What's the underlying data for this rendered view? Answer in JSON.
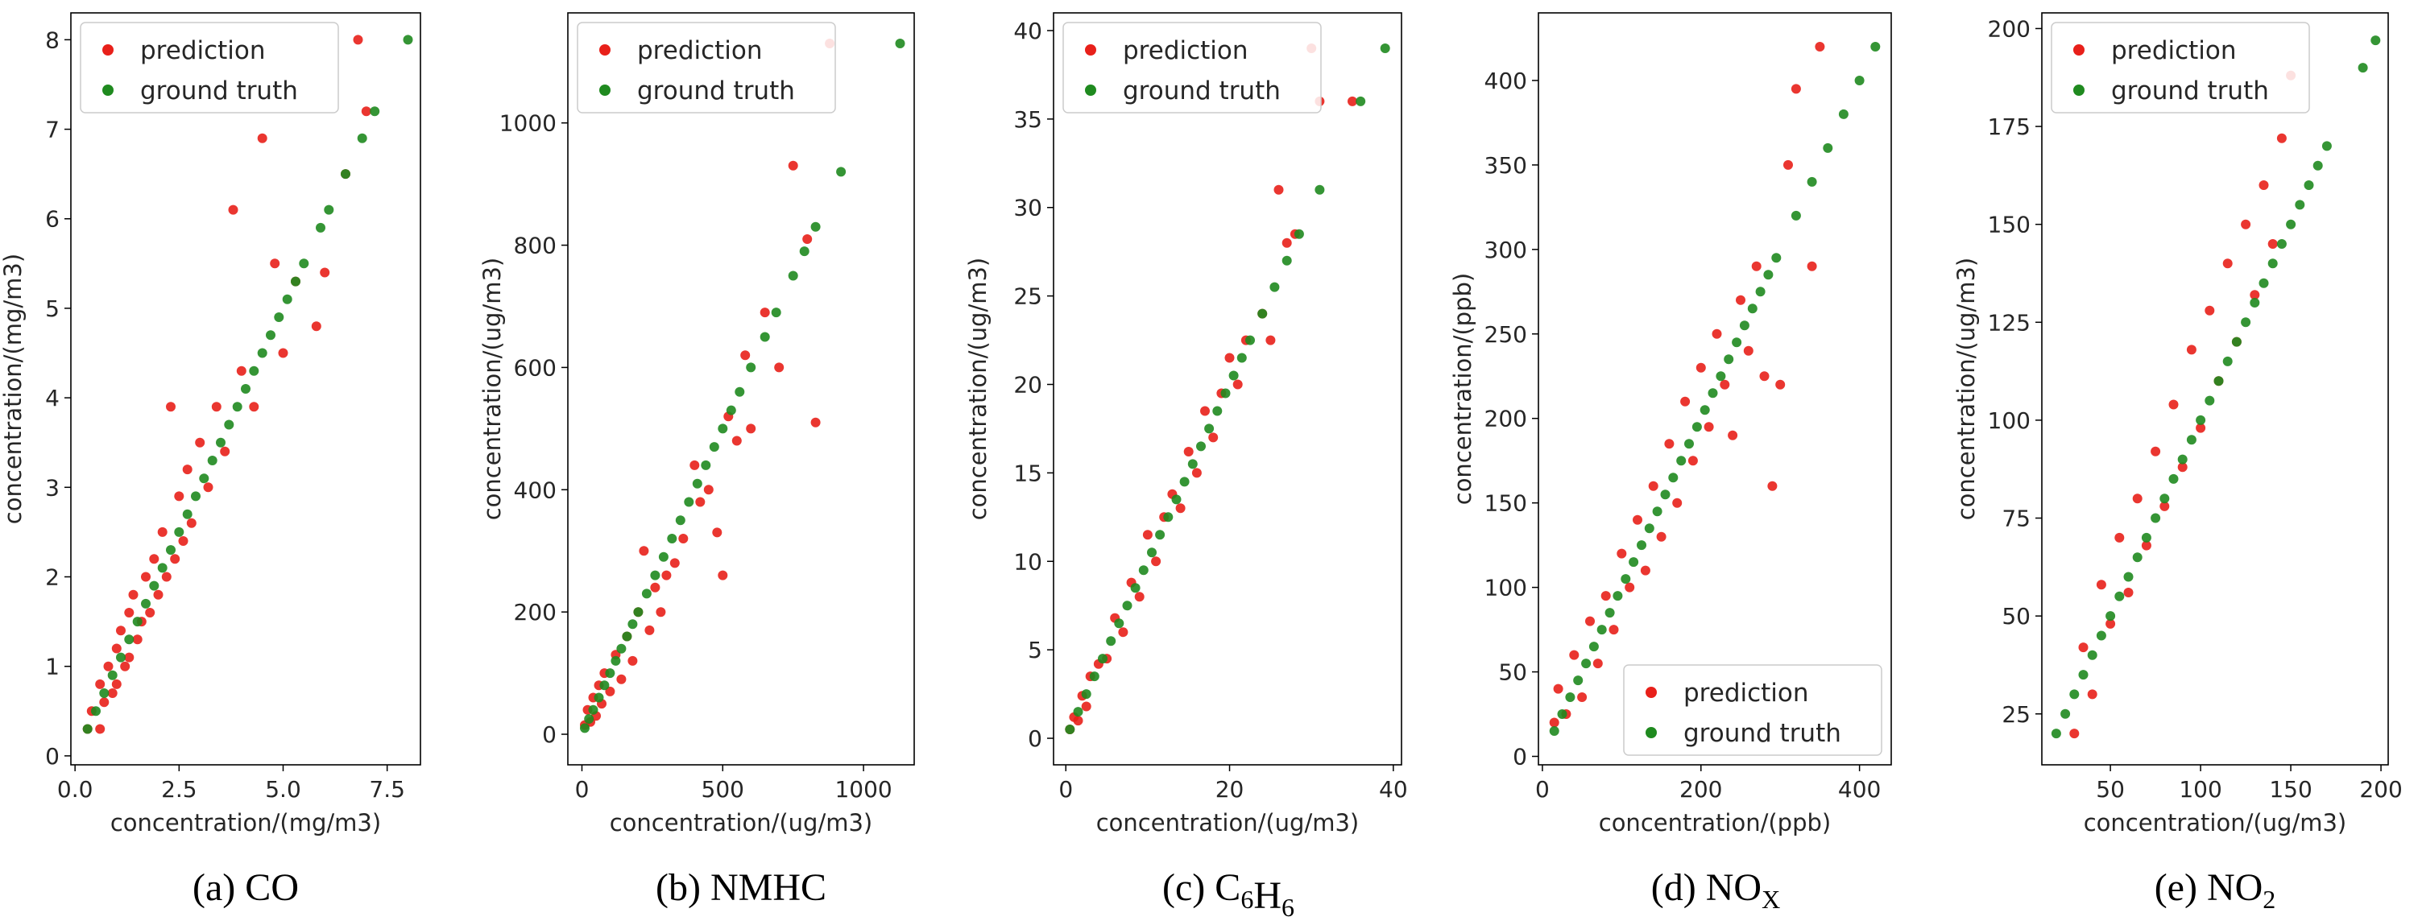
{
  "colors": {
    "prediction": "#e8201a",
    "ground_truth": "#1f8a1f"
  },
  "chart_data": [
    {
      "type": "scatter",
      "caption": "(a) CO",
      "xlabel": "concentration/(mg/m3)",
      "ylabel": "concentration/(mg/m3)",
      "xlim": [
        -0.1,
        8.3
      ],
      "ylim": [
        -0.1,
        8.3
      ],
      "xticks": [
        "0.0",
        "2.5",
        "5.0",
        "7.5"
      ],
      "xtick_values": [
        0,
        2.5,
        5,
        7.5
      ],
      "yticks": [
        "0",
        "1",
        "2",
        "3",
        "4",
        "5",
        "6",
        "7",
        "8"
      ],
      "ytick_values": [
        0,
        1,
        2,
        3,
        4,
        5,
        6,
        7,
        8
      ],
      "legend": {
        "placement": "upper-left",
        "entries": [
          "prediction",
          "ground truth"
        ]
      },
      "series": [
        {
          "name": "prediction",
          "color": "prediction",
          "x": [
            0.3,
            0.4,
            0.6,
            0.6,
            0.7,
            0.8,
            0.9,
            1.0,
            1.0,
            1.1,
            1.2,
            1.3,
            1.3,
            1.4,
            1.5,
            1.6,
            1.7,
            1.8,
            1.9,
            2.0,
            2.1,
            2.2,
            2.3,
            2.4,
            2.5,
            2.6,
            2.7,
            2.8,
            3.0,
            3.2,
            3.4,
            3.6,
            3.8,
            4.0,
            4.3,
            4.5,
            4.8,
            5.0,
            5.3,
            5.8,
            6.0,
            6.5,
            6.8,
            7.0
          ],
          "y": [
            0.3,
            0.5,
            0.3,
            0.8,
            0.6,
            1.0,
            0.7,
            1.2,
            0.8,
            1.4,
            1.0,
            1.6,
            1.1,
            1.8,
            1.3,
            1.5,
            2.0,
            1.6,
            2.2,
            1.8,
            2.5,
            2.0,
            3.9,
            2.2,
            2.9,
            2.4,
            3.2,
            2.6,
            3.5,
            3.0,
            3.9,
            3.4,
            6.1,
            4.3,
            3.9,
            6.9,
            5.5,
            4.5,
            5.3,
            4.8,
            5.4,
            6.5,
            8.0,
            7.2
          ]
        },
        {
          "name": "ground truth",
          "color": "ground_truth",
          "x": [
            0.3,
            0.5,
            0.7,
            0.9,
            1.1,
            1.3,
            1.5,
            1.7,
            1.9,
            2.1,
            2.3,
            2.5,
            2.7,
            2.9,
            3.1,
            3.3,
            3.5,
            3.7,
            3.9,
            4.1,
            4.3,
            4.5,
            4.7,
            4.9,
            5.1,
            5.3,
            5.5,
            5.9,
            6.1,
            6.5,
            6.9,
            7.2,
            8.0
          ],
          "y": [
            0.3,
            0.5,
            0.7,
            0.9,
            1.1,
            1.3,
            1.5,
            1.7,
            1.9,
            2.1,
            2.3,
            2.5,
            2.7,
            2.9,
            3.1,
            3.3,
            3.5,
            3.7,
            3.9,
            4.1,
            4.3,
            4.5,
            4.7,
            4.9,
            5.1,
            5.3,
            5.5,
            5.9,
            6.1,
            6.5,
            6.9,
            7.2,
            8.0
          ]
        }
      ]
    },
    {
      "type": "scatter",
      "caption": "(b) NMHC",
      "xlabel": "concentration/(ug/m3)",
      "ylabel": "concentration/(ug/m3)",
      "xlim": [
        -50,
        1180
      ],
      "ylim": [
        -50,
        1180
      ],
      "xticks": [
        "0",
        "500",
        "1000"
      ],
      "xtick_values": [
        0,
        500,
        1000
      ],
      "yticks": [
        "0",
        "200",
        "400",
        "600",
        "800",
        "1000"
      ],
      "ytick_values": [
        0,
        200,
        400,
        600,
        800,
        1000
      ],
      "legend": {
        "placement": "upper-left",
        "entries": [
          "prediction",
          "ground truth"
        ]
      },
      "series": [
        {
          "name": "prediction",
          "color": "prediction",
          "x": [
            10,
            20,
            30,
            40,
            50,
            60,
            70,
            80,
            100,
            120,
            140,
            160,
            180,
            200,
            220,
            240,
            260,
            280,
            300,
            330,
            360,
            400,
            420,
            450,
            480,
            500,
            520,
            550,
            580,
            600,
            650,
            700,
            750,
            800,
            830,
            880
          ],
          "y": [
            15,
            40,
            20,
            60,
            30,
            80,
            50,
            100,
            70,
            130,
            90,
            160,
            120,
            200,
            300,
            170,
            240,
            200,
            260,
            280,
            320,
            440,
            380,
            400,
            330,
            260,
            520,
            480,
            620,
            500,
            690,
            600,
            930,
            810,
            510,
            1130
          ]
        },
        {
          "name": "ground truth",
          "color": "ground_truth",
          "x": [
            10,
            25,
            40,
            60,
            80,
            100,
            120,
            140,
            160,
            180,
            200,
            230,
            260,
            290,
            320,
            350,
            380,
            410,
            440,
            470,
            500,
            530,
            560,
            600,
            650,
            690,
            750,
            790,
            830,
            920,
            1130
          ],
          "y": [
            10,
            25,
            40,
            60,
            80,
            100,
            120,
            140,
            160,
            180,
            200,
            230,
            260,
            290,
            320,
            350,
            380,
            410,
            440,
            470,
            500,
            530,
            560,
            600,
            650,
            690,
            750,
            790,
            830,
            920,
            1130
          ]
        }
      ]
    },
    {
      "type": "scatter",
      "caption": "(c) C6H6",
      "xlabel": "concentration/(ug/m3)",
      "ylabel": "concentration/(ug/m3)",
      "xlim": [
        -1.5,
        41
      ],
      "ylim": [
        -1.5,
        41
      ],
      "xticks": [
        "0",
        "20",
        "40"
      ],
      "xtick_values": [
        0,
        20,
        40
      ],
      "yticks": [
        "0",
        "5",
        "10",
        "15",
        "20",
        "25",
        "30",
        "35",
        "40"
      ],
      "ytick_values": [
        0,
        5,
        10,
        15,
        20,
        25,
        30,
        35,
        40
      ],
      "legend": {
        "placement": "upper-left",
        "entries": [
          "prediction",
          "ground truth"
        ]
      },
      "series": [
        {
          "name": "prediction",
          "color": "prediction",
          "x": [
            0.5,
            1,
            1.5,
            2,
            2.5,
            3,
            4,
            5,
            6,
            7,
            8,
            9,
            10,
            11,
            12,
            13,
            14,
            15,
            16,
            17,
            18,
            19,
            20,
            21,
            22,
            24,
            25,
            26,
            27,
            28,
            30,
            31,
            35
          ],
          "y": [
            0.5,
            1.2,
            1.0,
            2.4,
            1.8,
            3.5,
            4.2,
            4.5,
            6.8,
            6.0,
            8.8,
            8.0,
            11.5,
            10.0,
            12.5,
            13.8,
            13.0,
            16.2,
            15.0,
            18.5,
            17.0,
            19.5,
            21.5,
            20.0,
            22.5,
            24.0,
            22.5,
            31.0,
            28.0,
            28.5,
            39.0,
            36.0,
            36.0
          ]
        },
        {
          "name": "ground truth",
          "color": "ground_truth",
          "x": [
            0.5,
            1.5,
            2.5,
            3.5,
            4.5,
            5.5,
            6.5,
            7.5,
            8.5,
            9.5,
            10.5,
            11.5,
            12.5,
            13.5,
            14.5,
            15.5,
            16.5,
            17.5,
            18.5,
            19.5,
            20.5,
            21.5,
            22.5,
            24,
            25.5,
            27,
            28.5,
            31,
            36,
            39
          ],
          "y": [
            0.5,
            1.5,
            2.5,
            3.5,
            4.5,
            5.5,
            6.5,
            7.5,
            8.5,
            9.5,
            10.5,
            11.5,
            12.5,
            13.5,
            14.5,
            15.5,
            16.5,
            17.5,
            18.5,
            19.5,
            20.5,
            21.5,
            22.5,
            24,
            25.5,
            27,
            28.5,
            31,
            36,
            39
          ]
        }
      ]
    },
    {
      "type": "scatter",
      "caption": "(d) NOX",
      "xlabel": "concentration/(ppb)",
      "ylabel": "concentration/(ppb)",
      "xlim": [
        -5,
        440
      ],
      "ylim": [
        -5,
        440
      ],
      "xticks": [
        "0",
        "200",
        "400"
      ],
      "xtick_values": [
        0,
        200,
        400
      ],
      "yticks": [
        "0",
        "50",
        "100",
        "150",
        "200",
        "250",
        "300",
        "350",
        "400"
      ],
      "ytick_values": [
        0,
        50,
        100,
        150,
        200,
        250,
        300,
        350,
        400
      ],
      "legend": {
        "placement": "lower-right",
        "entries": [
          "prediction",
          "ground truth"
        ]
      },
      "series": [
        {
          "name": "prediction",
          "color": "prediction",
          "x": [
            15,
            20,
            30,
            40,
            50,
            60,
            70,
            80,
            90,
            100,
            110,
            120,
            130,
            140,
            150,
            160,
            170,
            180,
            190,
            200,
            210,
            220,
            230,
            240,
            250,
            260,
            270,
            280,
            290,
            300,
            310,
            320,
            340,
            350
          ],
          "y": [
            20,
            40,
            25,
            60,
            35,
            80,
            55,
            95,
            75,
            120,
            100,
            140,
            110,
            160,
            130,
            185,
            150,
            210,
            175,
            230,
            195,
            250,
            220,
            190,
            270,
            240,
            290,
            225,
            160,
            220,
            350,
            395,
            290,
            420
          ]
        },
        {
          "name": "ground truth",
          "color": "ground_truth",
          "x": [
            15,
            25,
            35,
            45,
            55,
            65,
            75,
            85,
            95,
            105,
            115,
            125,
            135,
            145,
            155,
            165,
            175,
            185,
            195,
            205,
            215,
            225,
            235,
            245,
            255,
            265,
            275,
            285,
            295,
            320,
            340,
            360,
            380,
            400,
            420
          ],
          "y": [
            15,
            25,
            35,
            45,
            55,
            65,
            75,
            85,
            95,
            105,
            115,
            125,
            135,
            145,
            155,
            165,
            175,
            185,
            195,
            205,
            215,
            225,
            235,
            245,
            255,
            265,
            275,
            285,
            295,
            320,
            340,
            360,
            380,
            400,
            420
          ]
        }
      ]
    },
    {
      "type": "scatter",
      "caption": "(e) NO2",
      "xlabel": "concentration/(ug/m3)",
      "ylabel": "concentration/(ug/m3)",
      "xlim": [
        12,
        204
      ],
      "ylim": [
        12,
        204
      ],
      "xticks": [
        "50",
        "100",
        "150",
        "200"
      ],
      "xtick_values": [
        50,
        100,
        150,
        200
      ],
      "yticks": [
        "25",
        "50",
        "75",
        "100",
        "125",
        "150",
        "175",
        "200"
      ],
      "ytick_values": [
        25,
        50,
        75,
        100,
        125,
        150,
        175,
        200
      ],
      "legend": {
        "placement": "upper-left",
        "entries": [
          "prediction",
          "ground truth"
        ]
      },
      "series": [
        {
          "name": "prediction",
          "color": "prediction",
          "x": [
            30,
            35,
            40,
            45,
            50,
            55,
            60,
            65,
            70,
            75,
            80,
            85,
            90,
            95,
            100,
            105,
            110,
            115,
            120,
            125,
            130,
            135,
            140,
            145,
            150
          ],
          "y": [
            20,
            42,
            30,
            58,
            48,
            70,
            56,
            80,
            68,
            92,
            78,
            104,
            88,
            118,
            98,
            128,
            110,
            140,
            120,
            150,
            132,
            160,
            145,
            172,
            188
          ]
        },
        {
          "name": "ground truth",
          "color": "ground_truth",
          "x": [
            20,
            25,
            30,
            35,
            40,
            45,
            50,
            55,
            60,
            65,
            70,
            75,
            80,
            85,
            90,
            95,
            100,
            105,
            110,
            115,
            120,
            125,
            130,
            135,
            140,
            145,
            150,
            155,
            160,
            165,
            170,
            190,
            197
          ],
          "y": [
            20,
            25,
            30,
            35,
            40,
            45,
            50,
            55,
            60,
            65,
            70,
            75,
            80,
            85,
            90,
            95,
            100,
            105,
            110,
            115,
            120,
            125,
            130,
            135,
            140,
            145,
            150,
            155,
            160,
            165,
            170,
            190,
            197
          ]
        }
      ]
    }
  ]
}
